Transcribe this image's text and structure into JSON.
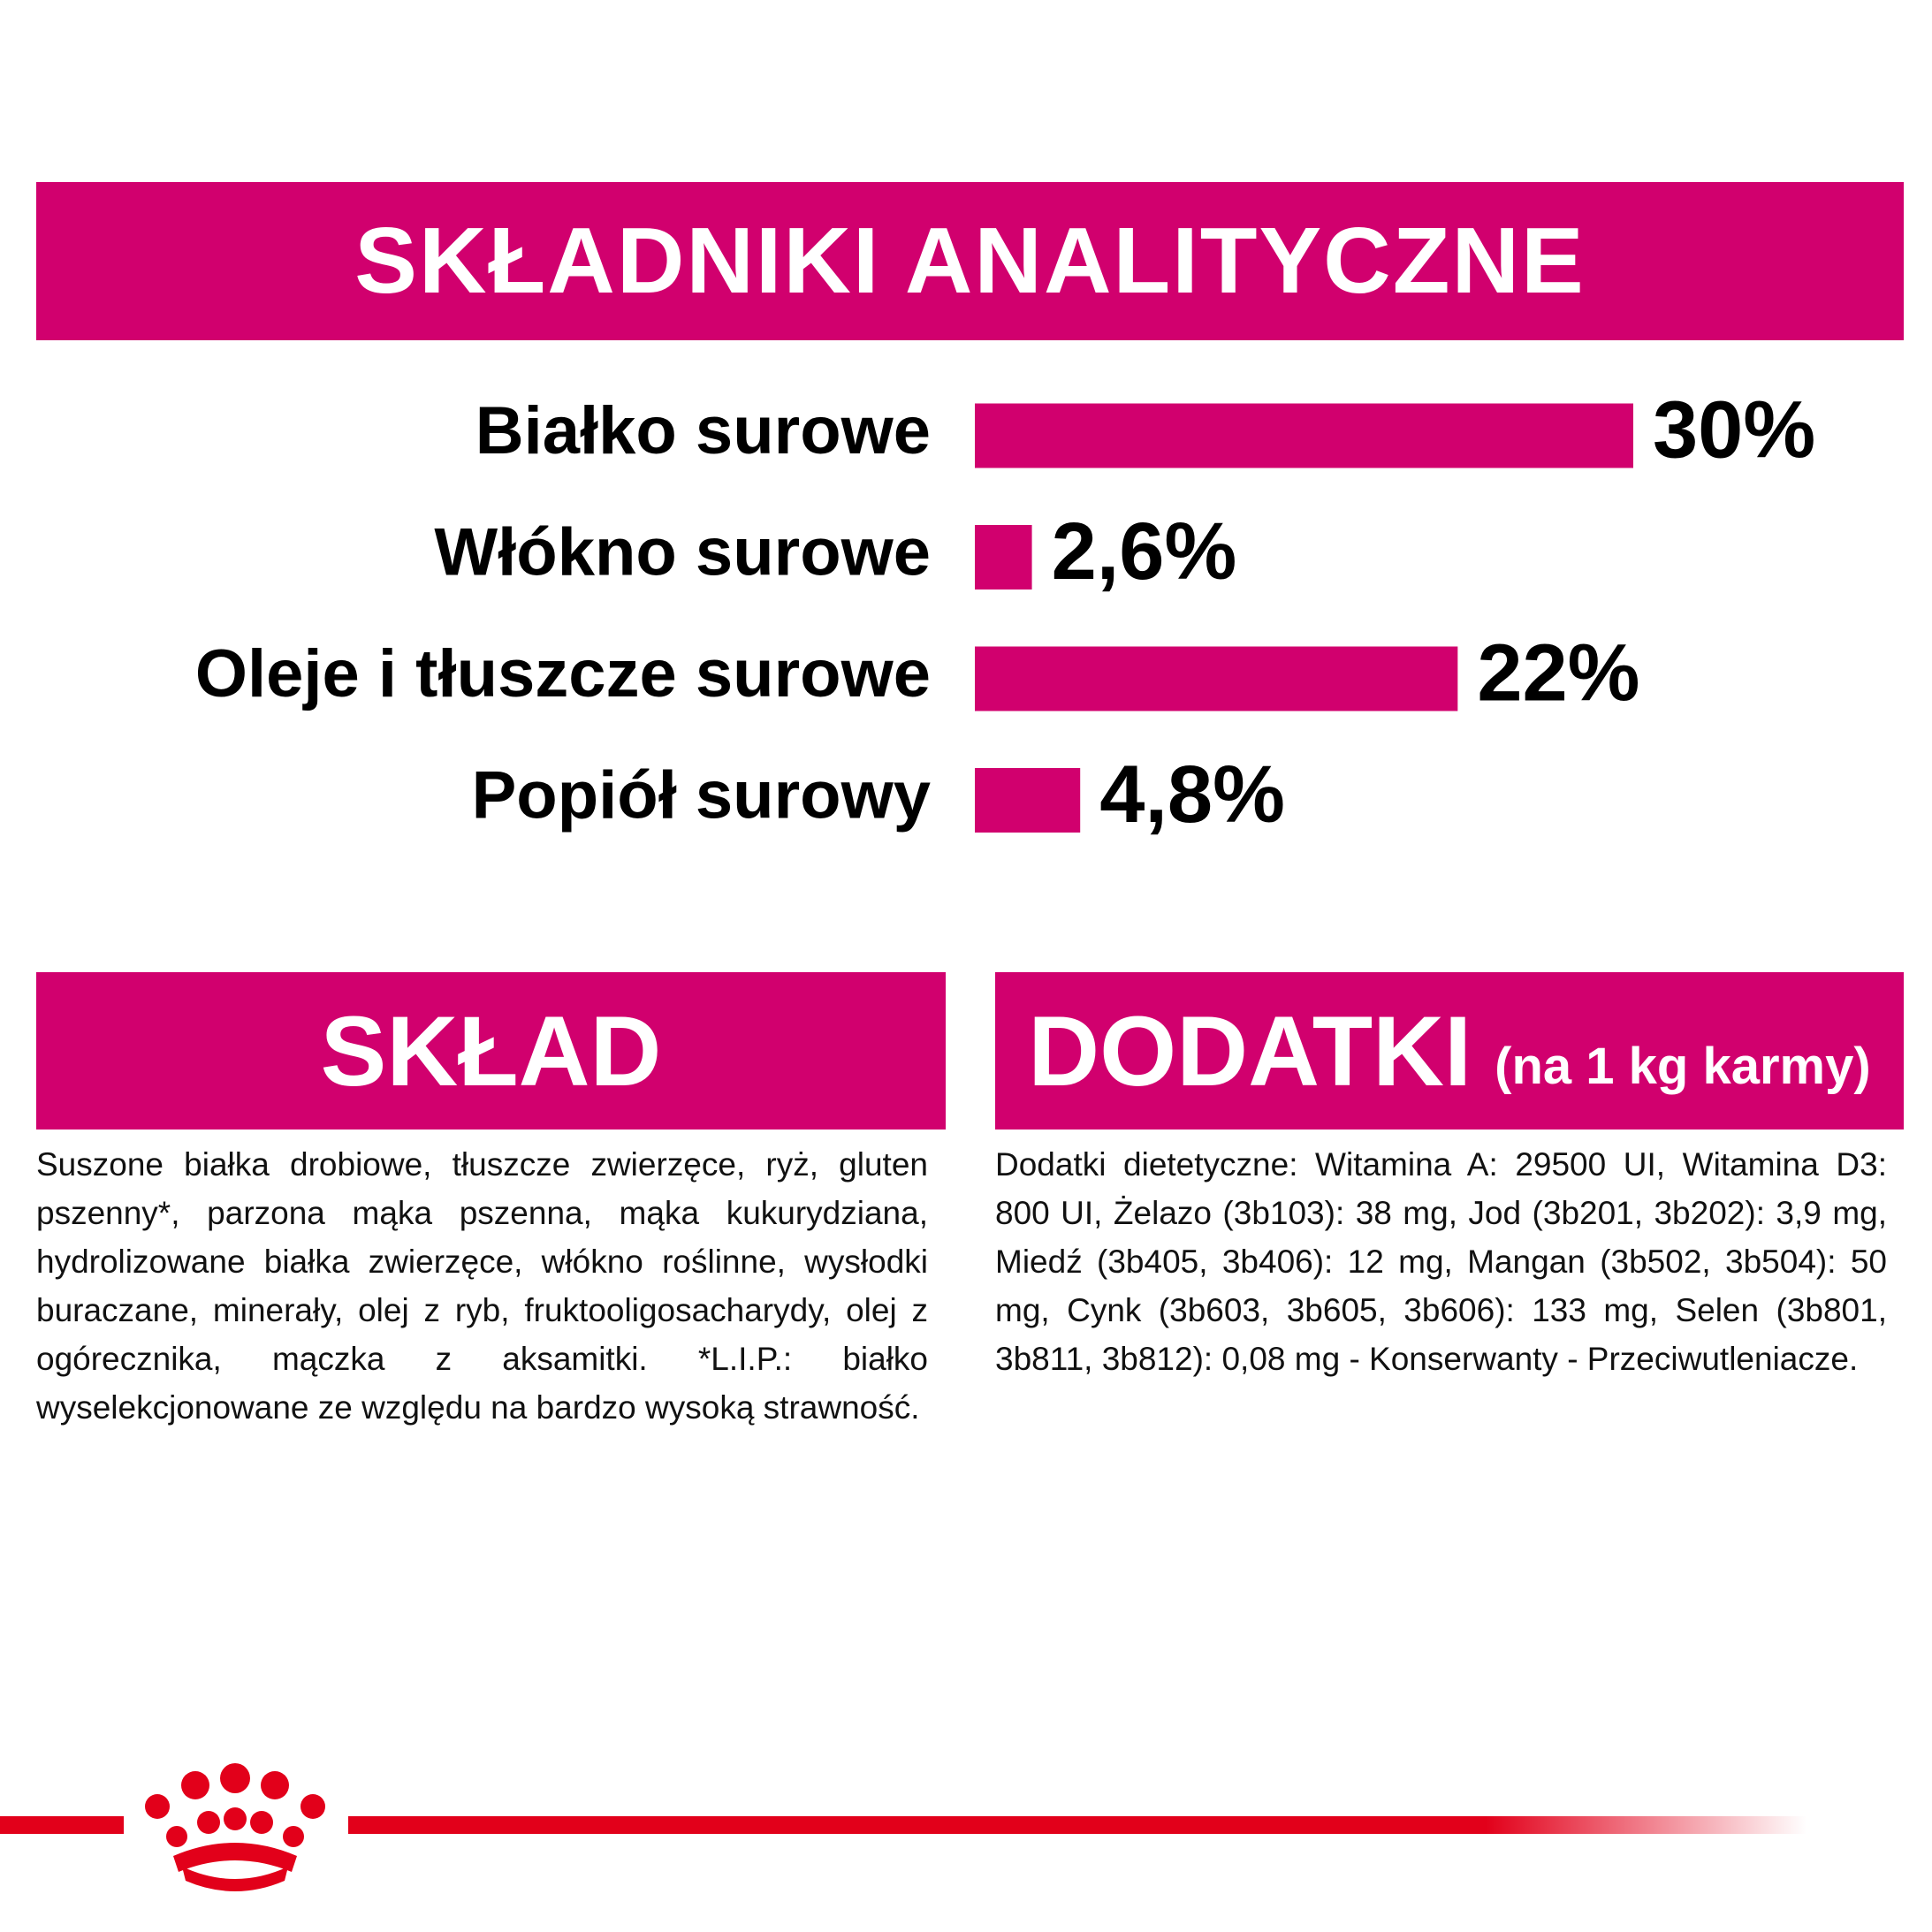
{
  "header": {
    "title": "SKŁADNIKI ANALITYCZNE"
  },
  "chart_data": {
    "type": "bar",
    "orientation": "horizontal",
    "categories": [
      "Białko surowe",
      "Włókno surowe",
      "Oleje i tłuszcze surowe",
      "Popiół surowy"
    ],
    "values": [
      30,
      2.6,
      22,
      4.8
    ],
    "value_labels": [
      "30%",
      "2,6%",
      "22%",
      "4,8%"
    ],
    "color": "#d1006e"
  },
  "composition": {
    "title": "SKŁAD",
    "text": "Suszone białka drobiowe, tłuszcze zwierzęce, ryż, gluten pszenny*, parzona mąka pszenna, mąka kukurydziana, hydrolizowane białka zwierzęce, włókno roślinne, wysłodki buraczane, minerały, olej z ryb, fruktooligosacharydy, olej z ogórecznika, mączka z aksamitki. *L.I.P.: białko wyselekcjonowane ze względu na bardzo wysoką strawność."
  },
  "additives": {
    "title": "DODATKI",
    "subtitle": "(na 1 kg karmy)",
    "text": "Dodatki dietetyczne: Witamina A: 29500 UI, Witamina D3: 800 UI, Żelazo (3b103): 38 mg, Jod (3b201, 3b202): 3,9 mg, Miedź (3b405, 3b406): 12 mg, Mangan (3b502, 3b504): 50 mg, Cynk (3b603, 3b605, 3b606): 133 mg, Selen (3b801, 3b811, 3b812): 0,08 mg - Konserwanty - Przeciwutleniacze."
  }
}
